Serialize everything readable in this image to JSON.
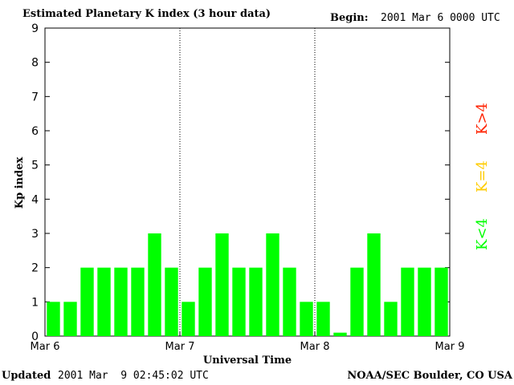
{
  "header": {
    "title": "Estimated Planetary K index (3 hour data)",
    "begin_label": "Begin:",
    "begin_value": "2001 Mar 6 0000 UTC"
  },
  "footer": {
    "updated_label": "Updated",
    "updated_value": "2001 Mar  9 02:45:02 UTC",
    "source": "NOAA/SEC Boulder, CO USA"
  },
  "legend": [
    {
      "label": "K<4",
      "color": "#00ff00"
    },
    {
      "label": "K=4",
      "color": "#ffcc00"
    },
    {
      "label": "K>4",
      "color": "#ff2200"
    }
  ],
  "chart_data": {
    "type": "bar",
    "title": "Estimated Planetary K index (3 hour data)",
    "xlabel": "Universal Time",
    "ylabel": "Kp index",
    "ylim": [
      0,
      9
    ],
    "yticks": [
      "0",
      "1",
      "2",
      "3",
      "4",
      "5",
      "6",
      "7",
      "8",
      "9"
    ],
    "xticks": [
      "Mar 6",
      "Mar 7",
      "Mar 8",
      "Mar 9"
    ],
    "day_separators": [
      "Mar 7",
      "Mar 8"
    ],
    "bar_color": "#00ff00",
    "values": [
      1,
      1,
      2,
      2,
      2,
      2,
      3,
      2,
      1,
      2,
      3,
      2,
      2,
      3,
      2,
      1,
      1,
      0.1,
      2,
      3,
      1,
      2,
      2,
      2
    ]
  }
}
